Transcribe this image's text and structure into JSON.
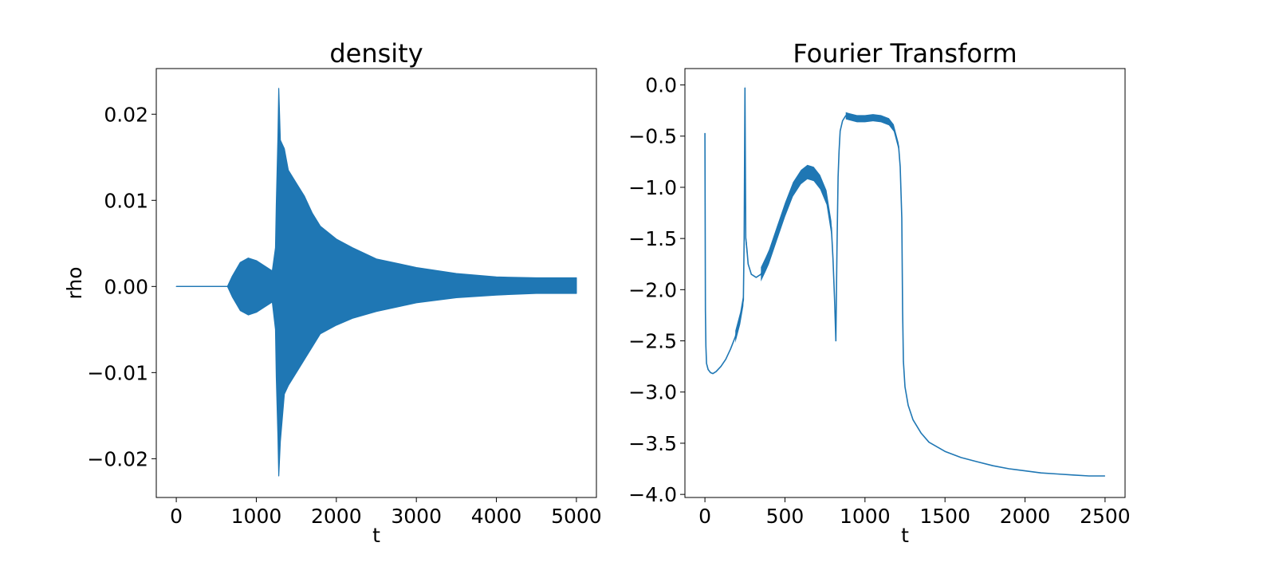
{
  "chart_data": [
    {
      "type": "line",
      "title": "density",
      "xlabel": "t",
      "ylabel": "rho",
      "xlim": [
        -250,
        5250
      ],
      "ylim": [
        -0.0245,
        0.0253
      ],
      "xticks": [
        0,
        1000,
        2000,
        3000,
        4000,
        5000
      ],
      "xtick_labels": [
        "0",
        "1000",
        "2000",
        "3000",
        "4000",
        "5000"
      ],
      "yticks": [
        -0.02,
        -0.01,
        0.0,
        0.01,
        0.02
      ],
      "ytick_labels": [
        "−0.02",
        "−0.01",
        "0.00",
        "0.01",
        "0.02"
      ],
      "grid": false,
      "series": [
        {
          "color": "#1f77b4",
          "envelope": {
            "t": [
              0,
              640,
              700,
              800,
              900,
              1000,
              1100,
              1200,
              1240,
              1250,
              1270,
              1280,
              1300,
              1350,
              1400,
              1500,
              1600,
              1700,
              1800,
              2000,
              2200,
              2500,
              2800,
              3000,
              3500,
              4000,
              4500,
              5000
            ],
            "upper": [
              0.0,
              0.0,
              0.0012,
              0.0028,
              0.0033,
              0.003,
              0.0024,
              0.0018,
              0.0045,
              0.0095,
              0.0175,
              0.023,
              0.017,
              0.016,
              0.0135,
              0.012,
              0.0105,
              0.0085,
              0.007,
              0.0055,
              0.0045,
              0.0032,
              0.0026,
              0.0022,
              0.0015,
              0.0011,
              0.001,
              0.001
            ],
            "lower": [
              0.0,
              0.0,
              -0.0012,
              -0.0028,
              -0.0033,
              -0.003,
              -0.0024,
              -0.0018,
              -0.005,
              -0.0105,
              -0.0175,
              -0.022,
              -0.018,
              -0.0125,
              -0.0115,
              -0.01,
              -0.0085,
              -0.007,
              -0.0055,
              -0.0045,
              -0.0037,
              -0.0029,
              -0.0023,
              -0.0019,
              -0.0013,
              -0.001,
              -0.0008,
              -0.0008
            ]
          }
        }
      ]
    },
    {
      "type": "line",
      "title": "Fourier Transform",
      "xlabel": "t",
      "ylabel": "",
      "xlim": [
        -125,
        2625
      ],
      "ylim": [
        -4.03,
        0.16
      ],
      "xticks": [
        0,
        500,
        1000,
        1500,
        2000,
        2500
      ],
      "xtick_labels": [
        "0",
        "500",
        "1000",
        "1500",
        "2000",
        "2500"
      ],
      "yticks": [
        -4.0,
        -3.5,
        -3.0,
        -2.5,
        -2.0,
        -1.5,
        -1.0,
        -0.5,
        0.0
      ],
      "ytick_labels": [
        "−4.0",
        "−3.5",
        "−3.0",
        "−2.5",
        "−2.0",
        "−1.5",
        "−1.0",
        "−0.5",
        "0.0"
      ],
      "grid": false,
      "series": [
        {
          "color": "#1f77b4",
          "x": [
            0,
            3,
            6,
            10,
            20,
            35,
            50,
            70,
            100,
            130,
            160,
            190,
            220,
            240,
            245,
            250,
            255,
            262,
            270,
            290,
            320,
            350,
            380,
            400,
            450,
            500,
            550,
            600,
            640,
            680,
            720,
            760,
            790,
            800,
            810,
            818,
            825,
            832,
            838,
            845,
            860,
            880,
            900,
            950,
            1000,
            1050,
            1100,
            1150,
            1180,
            1210,
            1220,
            1230,
            1235,
            1240,
            1250,
            1270,
            1300,
            1350,
            1400,
            1500,
            1600,
            1700,
            1800,
            1900,
            2000,
            2100,
            2200,
            2300,
            2400,
            2500
          ],
          "y": [
            -0.47,
            -2.2,
            -2.55,
            -2.72,
            -2.78,
            -2.81,
            -2.82,
            -2.8,
            -2.75,
            -2.68,
            -2.58,
            -2.46,
            -2.28,
            -2.1,
            -1.5,
            -0.03,
            -1.5,
            -1.6,
            -1.75,
            -1.85,
            -1.88,
            -1.85,
            -1.75,
            -1.68,
            -1.45,
            -1.22,
            -1.02,
            -0.9,
            -0.85,
            -0.87,
            -0.95,
            -1.1,
            -1.4,
            -1.7,
            -2.1,
            -2.5,
            -1.6,
            -0.9,
            -0.65,
            -0.45,
            -0.35,
            -0.3,
            -0.31,
            -0.33,
            -0.33,
            -0.32,
            -0.33,
            -0.36,
            -0.42,
            -0.6,
            -0.8,
            -1.3,
            -2.2,
            -2.7,
            -2.95,
            -3.13,
            -3.27,
            -3.4,
            -3.49,
            -3.58,
            -3.64,
            -3.68,
            -3.72,
            -3.75,
            -3.77,
            -3.79,
            -3.8,
            -3.81,
            -3.82,
            -3.82
          ]
        }
      ]
    }
  ]
}
